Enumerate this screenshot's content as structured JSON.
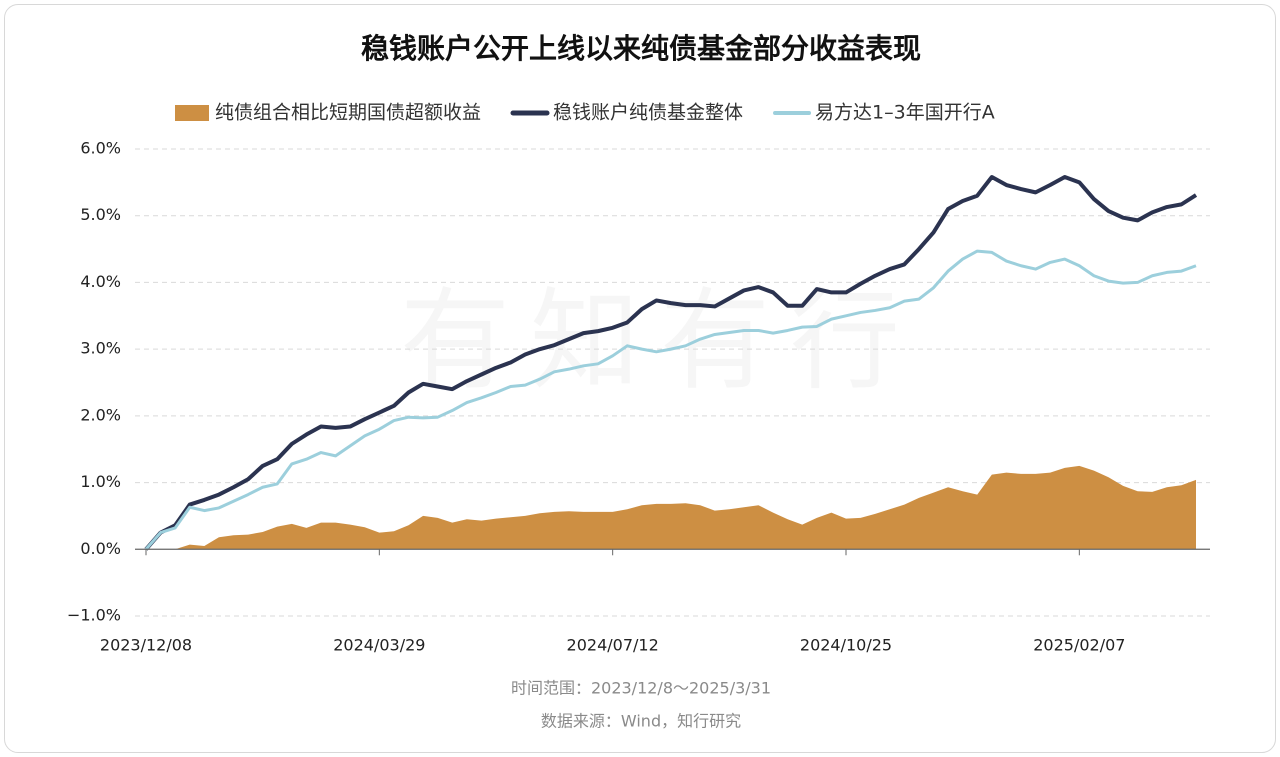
{
  "chart_data": {
    "type": "line",
    "title": "稳钱账户公开上线以来纯债基金部分收益表现",
    "watermark": "有知有行",
    "footnotes": [
      "时间范围：2023/12/8～2025/3/31",
      "数据来源：Wind，知行研究"
    ],
    "categories": [
      "2023/12/08",
      null,
      null,
      null,
      null,
      null,
      null,
      null,
      null,
      null,
      null,
      null,
      null,
      null,
      null,
      null,
      "2024/03/29",
      null,
      null,
      null,
      null,
      null,
      null,
      null,
      null,
      null,
      null,
      null,
      null,
      null,
      null,
      null,
      "2024/07/12",
      null,
      null,
      null,
      null,
      null,
      null,
      null,
      null,
      null,
      null,
      null,
      null,
      null,
      null,
      null,
      "2024/10/25",
      null,
      null,
      null,
      null,
      null,
      null,
      null,
      null,
      null,
      null,
      null,
      null,
      null,
      null,
      null,
      "2025/02/07",
      null,
      null,
      null,
      null,
      null,
      null,
      null,
      null
    ],
    "series": [
      {
        "name": "纯债组合相比短期国债超额收益",
        "type": "area",
        "color": "#cd8f43",
        "values": [
          0,
          0,
          0,
          0.07,
          0.05,
          0.18,
          0.21,
          0.22,
          0.26,
          0.34,
          0.38,
          0.32,
          0.4,
          0.4,
          0.37,
          0.33,
          0.25,
          0.27,
          0.36,
          0.5,
          0.47,
          0.4,
          0.45,
          0.43,
          0.46,
          0.48,
          0.5,
          0.54,
          0.56,
          0.57,
          0.56,
          0.56,
          0.56,
          0.6,
          0.66,
          0.68,
          0.68,
          0.69,
          0.66,
          0.58,
          0.6,
          0.63,
          0.66,
          0.55,
          0.45,
          0.37,
          0.47,
          0.55,
          0.46,
          0.47,
          0.53,
          0.6,
          0.67,
          0.77,
          0.85,
          0.93,
          0.87,
          0.82,
          1.12,
          1.15,
          1.13,
          1.13,
          1.15,
          1.22,
          1.25,
          1.18,
          1.08,
          0.95,
          0.87,
          0.86,
          0.93,
          0.96,
          1.04
        ]
      },
      {
        "name": "稳钱账户纯债基金整体",
        "type": "line",
        "color": "#2b3350",
        "values": [
          0,
          0.25,
          0.36,
          0.67,
          0.74,
          0.82,
          0.93,
          1.05,
          1.25,
          1.35,
          1.58,
          1.72,
          1.84,
          1.82,
          1.84,
          1.95,
          2.05,
          2.15,
          2.35,
          2.48,
          2.44,
          2.4,
          2.52,
          2.62,
          2.72,
          2.8,
          2.92,
          3.0,
          3.06,
          3.15,
          3.24,
          3.27,
          3.32,
          3.4,
          3.6,
          3.73,
          3.69,
          3.66,
          3.66,
          3.64,
          3.76,
          3.88,
          3.93,
          3.85,
          3.65,
          3.65,
          3.9,
          3.85,
          3.85,
          3.98,
          4.1,
          4.2,
          4.27,
          4.5,
          4.75,
          5.1,
          5.22,
          5.3,
          5.58,
          5.46,
          5.4,
          5.35,
          5.46,
          5.58,
          5.5,
          5.25,
          5.07,
          4.97,
          4.93,
          5.05,
          5.13,
          5.17,
          5.31
        ]
      },
      {
        "name": "易方达1–3年国开行A",
        "type": "line",
        "color": "#9ccfdc",
        "values": [
          0,
          0.25,
          0.32,
          0.63,
          0.58,
          0.62,
          0.72,
          0.82,
          0.93,
          0.98,
          1.28,
          1.35,
          1.45,
          1.4,
          1.55,
          1.7,
          1.8,
          1.93,
          1.98,
          1.97,
          1.98,
          2.08,
          2.2,
          2.27,
          2.35,
          2.44,
          2.46,
          2.55,
          2.66,
          2.7,
          2.75,
          2.78,
          2.9,
          3.05,
          3.0,
          2.96,
          3.0,
          3.05,
          3.15,
          3.22,
          3.25,
          3.28,
          3.28,
          3.24,
          3.28,
          3.33,
          3.34,
          3.45,
          3.5,
          3.55,
          3.58,
          3.62,
          3.72,
          3.75,
          3.92,
          4.17,
          4.35,
          4.47,
          4.45,
          4.32,
          4.25,
          4.2,
          4.3,
          4.35,
          4.25,
          4.1,
          4.02,
          3.99,
          4.0,
          4.1,
          4.15,
          4.17,
          4.25
        ]
      }
    ],
    "ylim": [
      -1,
      6
    ],
    "yticks": [
      {
        "value": -1,
        "label": "−1.0%"
      },
      {
        "value": 0,
        "label": "0.0%"
      },
      {
        "value": 1,
        "label": "1.0%"
      },
      {
        "value": 2,
        "label": "2.0%"
      },
      {
        "value": 3,
        "label": "3.0%"
      },
      {
        "value": 4,
        "label": "4.0%"
      },
      {
        "value": 5,
        "label": "5.0%"
      },
      {
        "value": 6,
        "label": "6.0%"
      }
    ],
    "grid": true,
    "legend": "top"
  }
}
